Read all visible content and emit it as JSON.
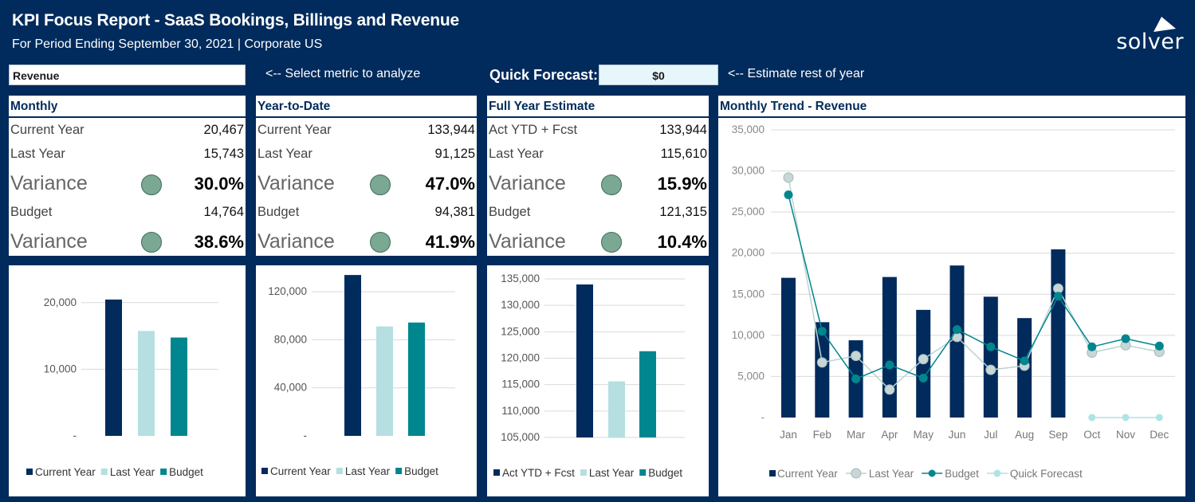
{
  "header": {
    "title": "KPI Focus Report - SaaS Bookings, Billings and Revenue",
    "subtitle": "For Period Ending September 30, 2021 | Corporate US",
    "brand": "solver"
  },
  "controls": {
    "metric_value": "Revenue",
    "metric_hint": "<-- Select metric to analyze",
    "forecast_label": "Quick Forecast:",
    "forecast_value": "$0",
    "forecast_hint": "<-- Estimate rest of year"
  },
  "colors": {
    "navy": "#002b5c",
    "light_teal": "#b5dfe0",
    "teal": "#00868e",
    "status_good": "#7aa893",
    "last_year_line": "#bcd3d3",
    "quick_forecast": "#aee4e4"
  },
  "panels": {
    "monthly": {
      "title": "Monthly",
      "row1_label": "Current Year",
      "row1_value": "20,467",
      "row2_label": "Last Year",
      "row2_value": "15,743",
      "var1_label": "Variance",
      "var1_value": "30.0%",
      "row3_label": "Budget",
      "row3_value": "14,764",
      "var2_label": "Variance",
      "var2_value": "38.6%"
    },
    "ytd": {
      "title": "Year-to-Date",
      "row1_label": "Current Year",
      "row1_value": "133,944",
      "row2_label": "Last Year",
      "row2_value": "91,125",
      "var1_label": "Variance",
      "var1_value": "47.0%",
      "row3_label": "Budget",
      "row3_value": "94,381",
      "var2_label": "Variance",
      "var2_value": "41.9%"
    },
    "fullyear": {
      "title": "Full Year Estimate",
      "row1_label": "Act YTD + Fcst",
      "row1_value": "133,944",
      "row2_label": "Last Year",
      "row2_value": "115,610",
      "var1_label": "Variance",
      "var1_value": "15.9%",
      "row3_label": "Budget",
      "row3_value": "121,315",
      "var2_label": "Variance",
      "var2_value": "10.4%"
    },
    "trend": {
      "title": "Monthly Trend - Revenue"
    }
  },
  "chart_data": [
    {
      "type": "bar",
      "categories": [
        "Current Year",
        "Last Year",
        "Budget"
      ],
      "values": [
        20467,
        15743,
        14764
      ],
      "ylim": [
        0,
        25000
      ],
      "ticks": [
        0,
        10000,
        20000
      ],
      "tick_labels": [
        "-",
        "10,000",
        "20,000"
      ],
      "legend": [
        "Current Year",
        "Last Year",
        "Budget"
      ],
      "legend_position": "bottom"
    },
    {
      "type": "bar",
      "categories": [
        "Current Year",
        "Last Year",
        "Budget"
      ],
      "values": [
        133944,
        91125,
        94381
      ],
      "ylim": [
        0,
        140000
      ],
      "ticks": [
        0,
        40000,
        80000,
        120000
      ],
      "tick_labels": [
        "-",
        "40,000",
        "80,000",
        "120,000"
      ],
      "legend": [
        "Current Year",
        "Last Year",
        "Budget"
      ],
      "legend_position": "bottom"
    },
    {
      "type": "bar",
      "categories": [
        "Act YTD + Fcst",
        "Last Year",
        "Budget"
      ],
      "values": [
        133944,
        115610,
        121315
      ],
      "ylim": [
        105000,
        135000
      ],
      "ticks": [
        105000,
        110000,
        115000,
        120000,
        125000,
        130000,
        135000
      ],
      "tick_labels": [
        "105,000",
        "110,000",
        "115,000",
        "120,000",
        "125,000",
        "130,000",
        "135,000"
      ],
      "legend": [
        "Act YTD + Fcst",
        "Last Year",
        "Budget"
      ],
      "legend_position": "bottom"
    },
    {
      "type": "bar+line",
      "categories": [
        "Jan",
        "Feb",
        "Mar",
        "Apr",
        "May",
        "Jun",
        "Jul",
        "Aug",
        "Sep",
        "Oct",
        "Nov",
        "Dec"
      ],
      "ylim": [
        0,
        35000
      ],
      "ticks": [
        0,
        5000,
        10000,
        15000,
        20000,
        25000,
        30000,
        35000
      ],
      "tick_labels": [
        "-",
        "5,000",
        "10,000",
        "15,000",
        "20,000",
        "25,000",
        "30,000",
        "35,000"
      ],
      "series": [
        {
          "name": "Current Year",
          "kind": "bar",
          "values": [
            17000,
            11600,
            9400,
            17100,
            13100,
            18500,
            14700,
            12100,
            20467,
            null,
            null,
            null
          ]
        },
        {
          "name": "Last Year",
          "kind": "line",
          "values": [
            29200,
            6700,
            7500,
            3400,
            7100,
            9800,
            5800,
            6300,
            15700,
            7900,
            8800,
            8000
          ]
        },
        {
          "name": "Budget",
          "kind": "line",
          "values": [
            27100,
            10500,
            4700,
            6400,
            4800,
            10700,
            8600,
            6900,
            14764,
            8600,
            9600,
            8700
          ]
        },
        {
          "name": "Quick Forecast",
          "kind": "line",
          "values": [
            null,
            null,
            null,
            null,
            null,
            null,
            null,
            null,
            null,
            0,
            0,
            0
          ]
        }
      ],
      "legend": [
        "Current Year",
        "Last Year",
        "Budget",
        "Quick Forecast"
      ],
      "legend_position": "bottom"
    }
  ]
}
